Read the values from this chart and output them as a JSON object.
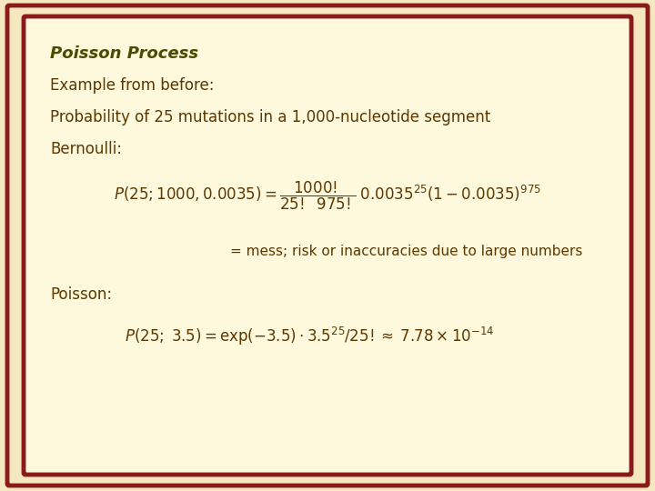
{
  "title": "Poisson Process",
  "bg_gradient_top": "#F5E6C8",
  "bg_inner": "#FEF8E0",
  "border_color": "#8B1A1A",
  "text_color": "#5C3A00",
  "title_color": "#4A4A00",
  "line1": "Example from before:",
  "line2": "Probability of 25 mutations in a 1,000-nucleotide segment",
  "line3": "Bernoulli:",
  "mess_text": "= mess; risk or inaccuracies due to large numbers",
  "poisson_label": "Poisson:",
  "bg_color": "#F5E8C0"
}
